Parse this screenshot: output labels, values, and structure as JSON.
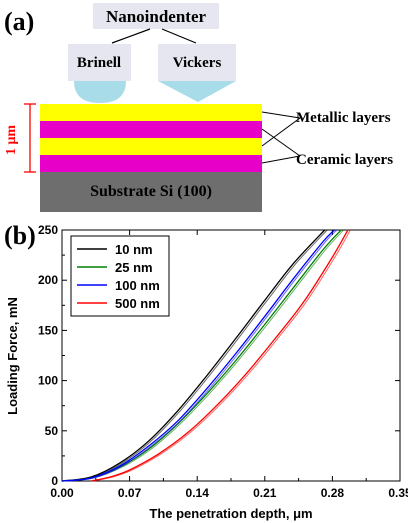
{
  "panel_a": {
    "label": "(a)",
    "nanoindenter": "Nanoindenter",
    "brinell": "Brinell",
    "vickers": "Vickers",
    "thickness_label": "1 μm",
    "metallic_label": "Metallic layers",
    "ceramic_label": "Ceramic layers",
    "substrate_label": "Substrate Si (100)",
    "colors": {
      "metallic": "#ffff00",
      "ceramic": "#e600c8",
      "substrate": "#6e6e6e",
      "indenter": "#e6e6f0",
      "tip": "#a8dce8",
      "dimension": "#ff0000"
    }
  },
  "panel_b": {
    "label": "(b)",
    "chart_data": {
      "type": "line",
      "xlabel": "The penetration depth, μm",
      "ylabel": "Loading Force, mN",
      "xlim": [
        0.0,
        0.35
      ],
      "ylim": [
        0,
        250
      ],
      "x_ticks": [
        "0.00",
        "0.07",
        "0.14",
        "0.21",
        "0.28",
        "0.35"
      ],
      "y_ticks": [
        "0",
        "50",
        "100",
        "150",
        "200",
        "250"
      ],
      "legend_position": "top-left",
      "series": [
        {
          "name": "10 nm",
          "color": "#000000",
          "x": [
            0.0,
            0.03,
            0.06,
            0.09,
            0.12,
            0.15,
            0.18,
            0.21,
            0.24,
            0.272
          ],
          "y": [
            0,
            4,
            18,
            40,
            70,
            105,
            142,
            180,
            217,
            250
          ]
        },
        {
          "name": "25 nm",
          "color": "#008000",
          "x": [
            0.0,
            0.03,
            0.06,
            0.09,
            0.12,
            0.15,
            0.18,
            0.21,
            0.24,
            0.27,
            0.289
          ],
          "y": [
            0,
            3,
            14,
            32,
            57,
            87,
            120,
            156,
            193,
            230,
            250
          ]
        },
        {
          "name": "100 nm",
          "color": "#0000ff",
          "x": [
            0.0,
            0.03,
            0.06,
            0.09,
            0.12,
            0.15,
            0.18,
            0.21,
            0.24,
            0.27,
            0.282
          ],
          "y": [
            0,
            3,
            15,
            35,
            60,
            92,
            127,
            164,
            202,
            238,
            250
          ]
        },
        {
          "name": "500 nm",
          "color": "#ff0000",
          "x": [
            0.03,
            0.05,
            0.07,
            0.1,
            0.13,
            0.16,
            0.19,
            0.22,
            0.25,
            0.28,
            0.296
          ],
          "y": [
            0,
            4,
            11,
            27,
            48,
            75,
            106,
            141,
            178,
            223,
            250
          ]
        }
      ]
    }
  }
}
